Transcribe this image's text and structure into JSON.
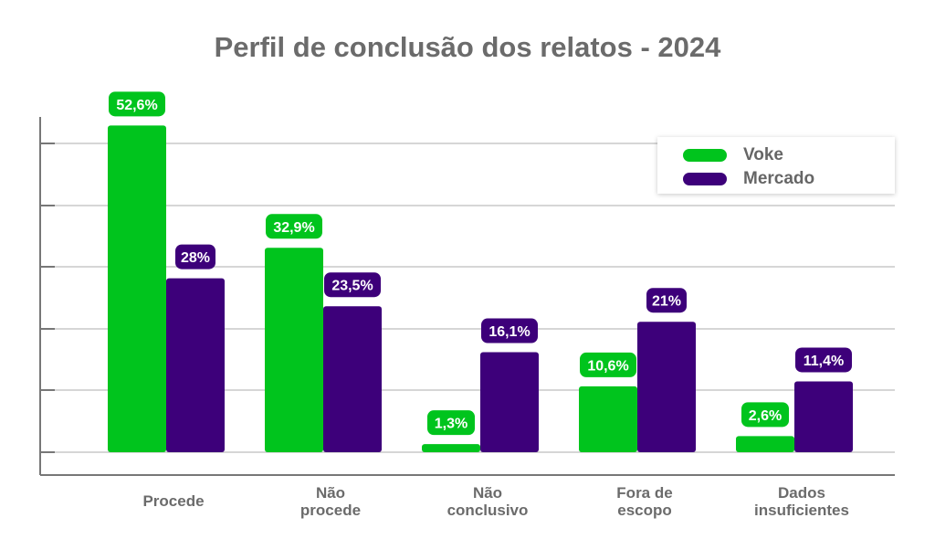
{
  "chart_data": {
    "type": "bar",
    "title": "Perfil de conclusão dos relatos - 2024",
    "xlabel": "",
    "ylabel": "",
    "ylim": [
      0,
      60
    ],
    "grid": true,
    "legend_position": "top-right",
    "categories": [
      [
        "Procede"
      ],
      [
        "Não",
        "procede"
      ],
      [
        "Não",
        "conclusivo"
      ],
      [
        "Fora de",
        "escopo"
      ],
      [
        "Dados",
        "insuficientes"
      ]
    ],
    "series": [
      {
        "name": "Voke",
        "color": "#00c41d",
        "values": [
          52.6,
          32.9,
          1.3,
          10.6,
          2.6
        ],
        "labels": [
          "52,6%",
          "32,9%",
          "1,3%",
          "10,6%",
          "2,6%"
        ]
      },
      {
        "name": "Mercado",
        "color": "#3d007a",
        "values": [
          28,
          23.5,
          16.1,
          21,
          11.4
        ],
        "labels": [
          "28%",
          "23,5%",
          "16,1%",
          "21%",
          "11,4%"
        ]
      }
    ]
  }
}
